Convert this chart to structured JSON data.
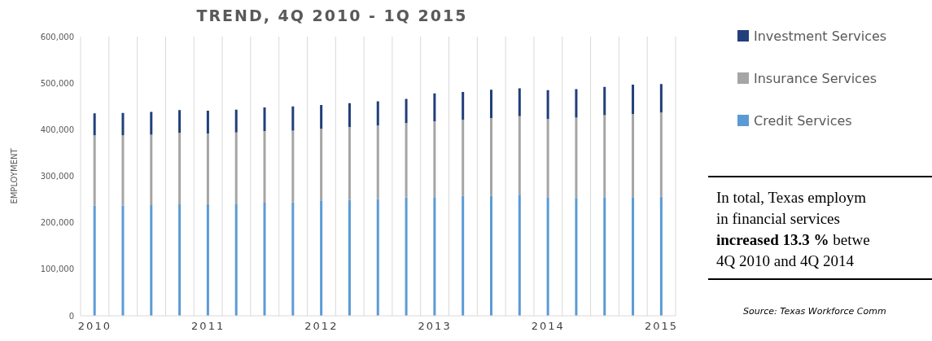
{
  "chart_data": {
    "type": "bar",
    "title": "TREND, 4Q 2010 - 1Q 2015",
    "ylabel": "EMPLOYMENT",
    "stacked": true,
    "categories": [
      "2010",
      null,
      null,
      null,
      "2011",
      null,
      null,
      null,
      "2012",
      null,
      null,
      null,
      "2013",
      null,
      null,
      null,
      "2014",
      null,
      null,
      null,
      "2015"
    ],
    "series": [
      {
        "name": "Credit Services",
        "color": "#5b9bd5",
        "values": [
          237000,
          237000,
          238000,
          241000,
          240000,
          241000,
          243000,
          244000,
          248000,
          249000,
          251000,
          254000,
          255000,
          258000,
          258000,
          260000,
          255000,
          253000,
          255000,
          255000,
          256000
        ]
      },
      {
        "name": "Insurance Services",
        "color": "#a5a5a5",
        "values": [
          151000,
          151000,
          151000,
          152000,
          152000,
          153000,
          154000,
          154000,
          154000,
          157000,
          158000,
          160000,
          163000,
          163000,
          167000,
          169000,
          168000,
          173000,
          176000,
          179000,
          181000
        ]
      },
      {
        "name": "Investment Services",
        "color": "#213f7a",
        "values": [
          47000,
          48000,
          49000,
          49000,
          49000,
          49000,
          51000,
          52000,
          51000,
          51000,
          52000,
          52000,
          60000,
          60000,
          61000,
          60000,
          62000,
          61000,
          61000,
          63000,
          61000
        ]
      }
    ],
    "ylim": [
      0,
      600000
    ],
    "yticks": [
      {
        "value": 0,
        "label": "0"
      },
      {
        "value": 100000,
        "label": "100,000"
      },
      {
        "value": 200000,
        "label": "200,000"
      },
      {
        "value": 300000,
        "label": "300,000"
      },
      {
        "value": 400000,
        "label": "400,000"
      },
      {
        "value": 500000,
        "label": "500,000"
      },
      {
        "value": 600000,
        "label": "600,000"
      }
    ],
    "grid": "x",
    "legend": "top right",
    "annotations": [
      "In total, Texas employm",
      "in financial services",
      "increased 13.3 %",
      "betwe",
      "4Q  2010 and 4Q 2014",
      "Source: Texas Workforce Comm"
    ]
  }
}
